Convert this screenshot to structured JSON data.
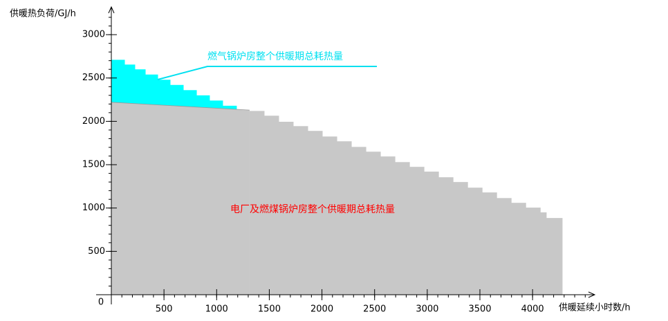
{
  "chart_data": {
    "type": "step-area",
    "y_label": "供暖热负荷/GJ/h",
    "x_label": "供暖延续小时数/h",
    "origin_label": 0,
    "xlim": [
      0,
      4590
    ],
    "ylim": [
      0,
      3320
    ],
    "xticks": [
      500,
      1000,
      1500,
      2000,
      2500,
      3000,
      3500,
      4000
    ],
    "yticks": [
      500,
      1000,
      1500,
      2000,
      2500,
      3000
    ],
    "x_minor_step": 100,
    "y_minor_step": 100,
    "series": [
      {
        "type": "step",
        "color": "#00ffff",
        "edges": [
          0,
          125,
          223,
          322,
          440,
          558,
          683,
          808,
          932,
          1057,
          1188
        ],
        "values": [
          2710,
          2655,
          2600,
          2540,
          2480,
          2420,
          2360,
          2300,
          2240,
          2180
        ]
      },
      {
        "type": "line",
        "color": "#c8c8c8",
        "x": [
          0,
          1313
        ],
        "values": [
          2220,
          2130
        ]
      },
      {
        "type": "step",
        "color": "#c8c8c8",
        "edges": [
          1313,
          1451,
          1589,
          1727,
          1865,
          2003,
          2141,
          2279,
          2417,
          2555,
          2693,
          2831,
          2969,
          3107,
          3245,
          3383,
          3521,
          3659,
          3797,
          3935,
          4073,
          4130,
          4281
        ],
        "values": [
          2120,
          2065,
          1995,
          1945,
          1890,
          1825,
          1770,
          1705,
          1650,
          1595,
          1530,
          1475,
          1420,
          1355,
          1300,
          1235,
          1180,
          1115,
          1060,
          1005,
          950,
          885
        ]
      }
    ],
    "annotations": [
      {
        "text": "燃气锅炉房整个供暖期总耗热量",
        "color": "#00e0f0"
      },
      {
        "text": "电厂及燃煤锅炉房整个供暖期总耗热量",
        "color": "#ff0000"
      }
    ]
  }
}
